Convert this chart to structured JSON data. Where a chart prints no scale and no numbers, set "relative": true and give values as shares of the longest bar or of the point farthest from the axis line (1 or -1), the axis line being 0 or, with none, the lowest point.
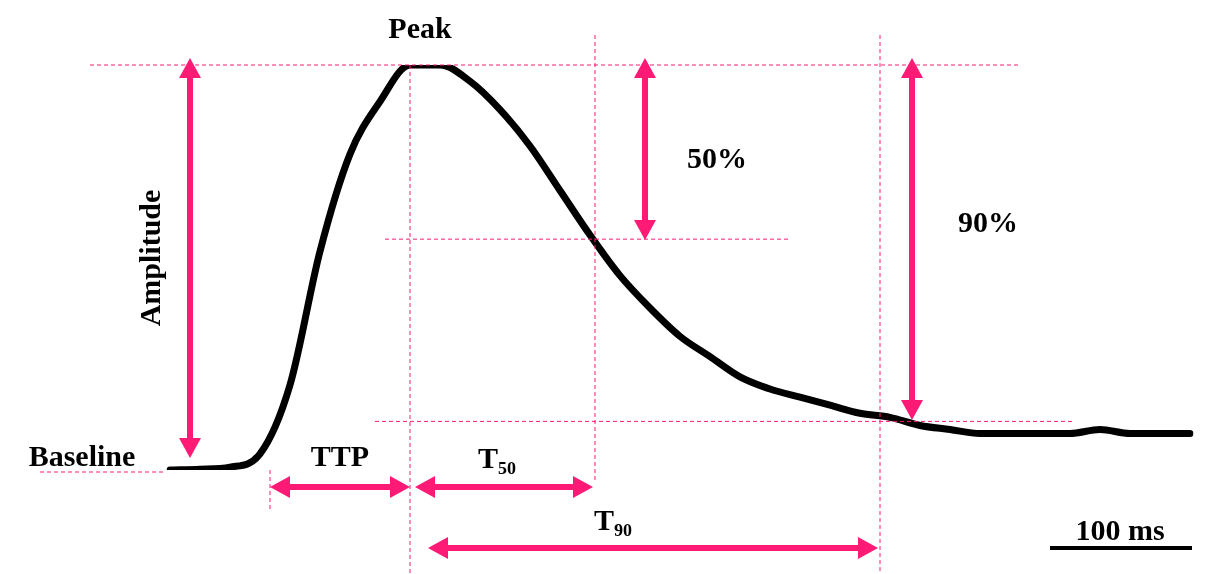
{
  "chart_data": {
    "type": "line",
    "relative": true,
    "color": "#000000",
    "marker": "none",
    "categories": [
      null,
      null,
      null,
      null,
      null,
      null,
      null,
      null,
      null,
      null,
      null,
      null,
      null,
      null,
      null,
      null,
      null,
      null,
      null,
      null,
      null,
      null,
      null,
      null,
      null,
      null,
      null,
      null,
      null,
      null,
      null,
      null,
      null,
      null,
      null
    ],
    "values": [
      0,
      0.002,
      0.007,
      0.04,
      0.21,
      0.54,
      0.78,
      0.91,
      1,
      1,
      0.96,
      0.89,
      0.8,
      0.69,
      0.58,
      0.48,
      0.4,
      0.33,
      0.28,
      0.23,
      0.2,
      0.18,
      0.16,
      0.14,
      0.13,
      0.11,
      0.1,
      0.09,
      0.09,
      0.09,
      0.09,
      0.1,
      0.09,
      0.09,
      0.09
    ],
    "annotations": [
      "Peak",
      "Baseline",
      "Amplitude",
      "TTP",
      "T₅₀",
      "T₉₀",
      "50%",
      "90%",
      "100 ms"
    ],
    "ref_lines": [
      {
        "axis": "y",
        "value": 1,
        "color": "#ff1a75",
        "line_style": "dashed"
      },
      {
        "axis": "y",
        "value": 0.57,
        "color": "#ff1a75",
        "line_style": "dashed"
      },
      {
        "axis": "y",
        "value": 0.12,
        "color": "#ff1a75",
        "line_style": "dashed"
      }
    ]
  }
}
